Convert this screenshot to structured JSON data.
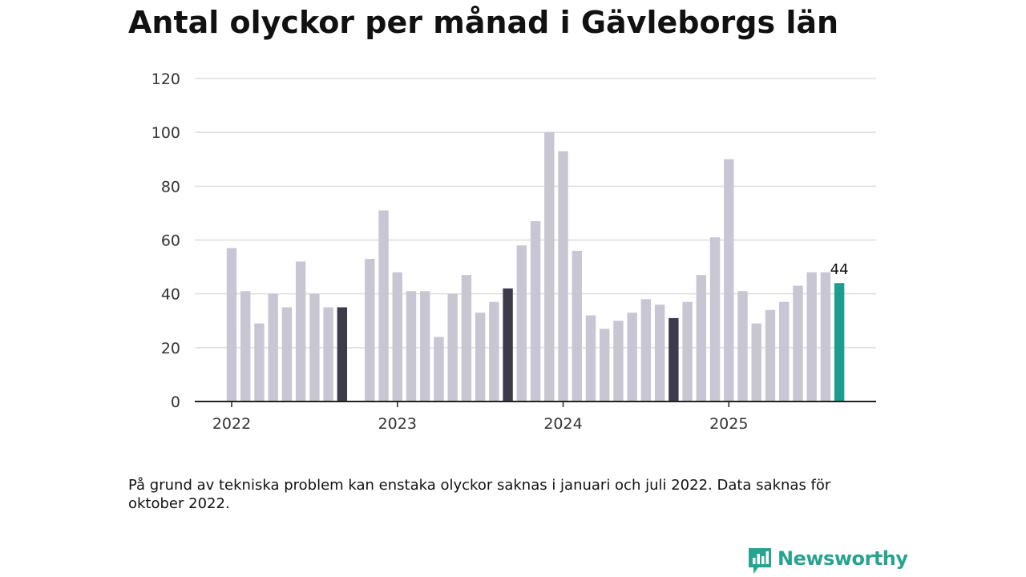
{
  "chart_data": {
    "type": "bar",
    "title": "Antal olyckor per månad i Gävleborgs län",
    "xlabel": "",
    "ylabel": "",
    "ylim": [
      0,
      120
    ],
    "yticks": [
      0,
      20,
      40,
      60,
      80,
      100,
      120
    ],
    "year_labels": [
      {
        "label": "2022",
        "month_index": 0
      },
      {
        "label": "2023",
        "month_index": 12
      },
      {
        "label": "2024",
        "month_index": 24
      },
      {
        "label": "2025",
        "month_index": 36
      }
    ],
    "months": [
      "2022-01",
      "2022-02",
      "2022-03",
      "2022-04",
      "2022-05",
      "2022-06",
      "2022-07",
      "2022-08",
      "2022-09",
      "2022-10",
      "2022-11",
      "2022-12",
      "2023-01",
      "2023-02",
      "2023-03",
      "2023-04",
      "2023-05",
      "2023-06",
      "2023-07",
      "2023-08",
      "2023-09",
      "2023-10",
      "2023-11",
      "2023-12",
      "2024-01",
      "2024-02",
      "2024-03",
      "2024-04",
      "2024-05",
      "2024-06",
      "2024-07",
      "2024-08",
      "2024-09",
      "2024-10",
      "2024-11",
      "2024-12",
      "2025-01",
      "2025-02",
      "2025-03",
      "2025-04",
      "2025-05",
      "2025-06",
      "2025-07",
      "2025-08",
      "2025-09"
    ],
    "values": [
      57,
      41,
      29,
      40,
      35,
      52,
      40,
      35,
      35,
      null,
      53,
      71,
      48,
      41,
      41,
      24,
      40,
      47,
      33,
      37,
      42,
      58,
      67,
      100,
      93,
      56,
      32,
      27,
      30,
      33,
      38,
      36,
      31,
      37,
      47,
      61,
      90,
      41,
      29,
      34,
      37,
      43,
      48,
      48,
      44
    ],
    "highlight_dark": [
      "2022-09",
      "2023-09",
      "2024-09"
    ],
    "highlight_current": "2025-09",
    "value_label": {
      "month": "2025-09",
      "text": "44"
    },
    "colors": {
      "bar": "#c8c6d2",
      "dark": "#3d3b4a",
      "current": "#1a9e8f",
      "grid": "#dddddd",
      "axis": "#222222"
    },
    "grid": true,
    "legend": "none"
  },
  "note": "På grund av tekniska problem kan enstaka olyckor saknas i januari och juli 2022. Data saknas för oktober 2022.",
  "brand": {
    "name": "Newsworthy",
    "icon": "newsworthy-logo-icon",
    "color": "#27a38f"
  }
}
